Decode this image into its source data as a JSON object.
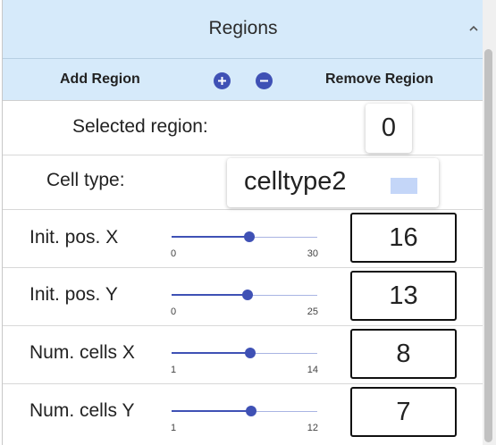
{
  "header": {
    "title": "Regions"
  },
  "toolbar": {
    "add_label": "Add Region",
    "remove_label": "Remove Region"
  },
  "selected_region": {
    "label": "Selected region:",
    "value": "0"
  },
  "cell_type": {
    "label": "Cell type:",
    "value": "celltype2",
    "swatch_color": "#c4d6f8"
  },
  "sliders": [
    {
      "label": "Init. pos. X",
      "value": "16",
      "min": "0",
      "max": "30",
      "fraction": 0.533
    },
    {
      "label": "Init. pos. Y",
      "value": "13",
      "min": "0",
      "max": "25",
      "fraction": 0.52
    },
    {
      "label": "Num. cells X",
      "value": "8",
      "min": "1",
      "max": "14",
      "fraction": 0.538
    },
    {
      "label": "Num. cells Y",
      "value": "7",
      "min": "1",
      "max": "12",
      "fraction": 0.545
    }
  ],
  "colors": {
    "accent": "#3f51b5",
    "header_bg": "#d6eafa"
  }
}
